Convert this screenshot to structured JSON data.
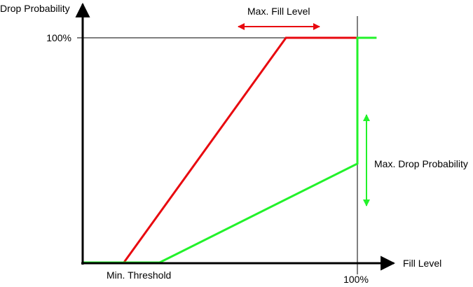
{
  "labels": {
    "y_axis": "Drop Probability",
    "x_axis": "Fill Level",
    "y_tick_100": "100%",
    "x_tick_100": "100%",
    "min_threshold": "Min. Threshold",
    "max_fill_level": "Max. Fill Level",
    "max_drop_probability": "Max. Drop Probability"
  },
  "colors": {
    "axis": "#000000",
    "guide": "#000000",
    "red_curve": "#e8090f",
    "green_curve": "#22f22a"
  },
  "chart_data": {
    "type": "line",
    "xlabel": "Fill Level",
    "ylabel": "Drop Probability",
    "x_unit": "% fill level",
    "y_unit": "% drop probability",
    "xlim": [
      0,
      100
    ],
    "ylim": [
      0,
      100
    ],
    "x_ticks": [
      "100%"
    ],
    "y_ticks": [
      "100%"
    ],
    "series": [
      {
        "color": "#e8090f",
        "points": [
          [
            0,
            0
          ],
          [
            15,
            0
          ],
          [
            74,
            100
          ],
          [
            100,
            100
          ]
        ]
      },
      {
        "color": "#22f22a",
        "points": [
          [
            0,
            0
          ],
          [
            28,
            0
          ],
          [
            100,
            44
          ],
          [
            100,
            100
          ],
          [
            107,
            100
          ]
        ]
      }
    ],
    "annotations": [
      {
        "text": "Min. Threshold"
      },
      {
        "text": "Max. Fill Level"
      },
      {
        "text": "Max. Drop Probability"
      }
    ]
  }
}
